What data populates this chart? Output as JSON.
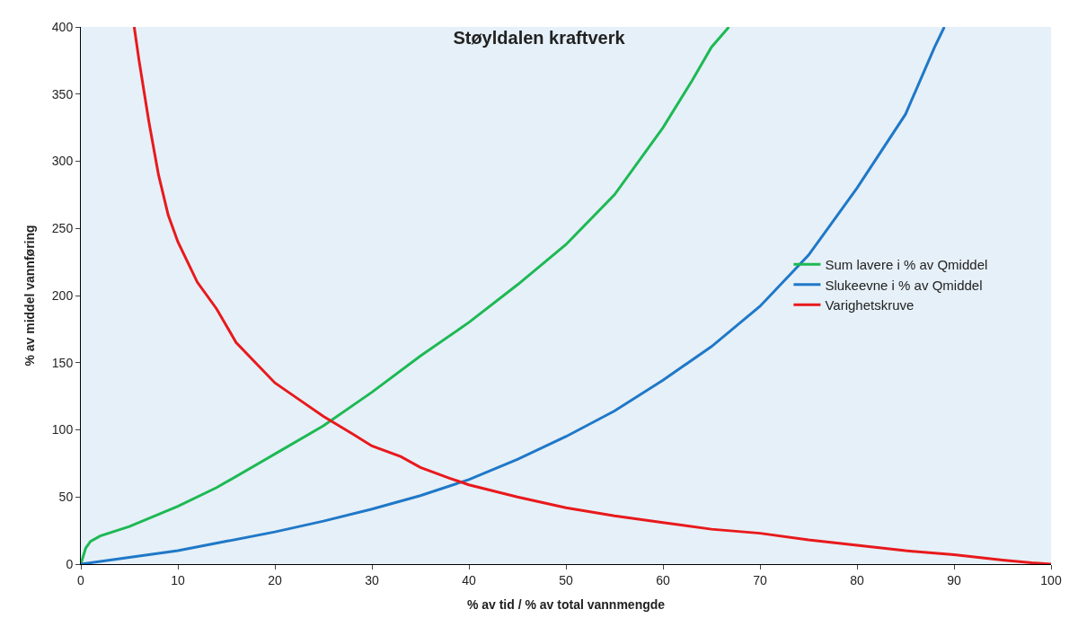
{
  "chart_data": {
    "type": "line",
    "title": "Støyldalen kraftverk",
    "xlabel": "% av tid / % av total vannmengde",
    "ylabel": "% av middel vannføring",
    "xlim": [
      0,
      100
    ],
    "xticks": [
      0,
      10,
      20,
      30,
      40,
      50,
      60,
      70,
      80,
      90,
      100
    ],
    "ylim": [
      0,
      400
    ],
    "yticks": [
      0,
      50,
      100,
      150,
      200,
      250,
      300,
      350,
      400
    ],
    "grid": false,
    "legend": "right",
    "marker": "none",
    "line_style": "solid",
    "series": [
      {
        "name": "Sum lavere i % av Qmiddel",
        "color": "#1db954",
        "x": [
          0,
          0.5,
          1,
          2,
          5,
          10,
          14,
          20,
          25,
          30,
          35,
          40,
          45,
          50,
          55,
          60,
          63,
          65,
          66.8
        ],
        "values": [
          0,
          12,
          17,
          21,
          28,
          43,
          57,
          82,
          103,
          128,
          155,
          180,
          208,
          238,
          275,
          325,
          360,
          385,
          400
        ]
      },
      {
        "name": "Slukeevne i % av Qmiddel",
        "color": "#1f78c8",
        "x": [
          0,
          5,
          10,
          15,
          20,
          25,
          30,
          35,
          40,
          45,
          50,
          55,
          60,
          65,
          70,
          75,
          80,
          85,
          88,
          89
        ],
        "values": [
          0,
          5,
          10,
          17,
          24,
          32,
          41,
          51,
          63,
          78,
          95,
          114,
          137,
          162,
          192,
          230,
          280,
          335,
          385,
          400
        ]
      },
      {
        "name": "Varighetskruve",
        "color": "#e8191c",
        "x": [
          5.5,
          6,
          7,
          8,
          9,
          10,
          12,
          14,
          16,
          18,
          20,
          22,
          25,
          28,
          30,
          33,
          35,
          38,
          40,
          45,
          50,
          55,
          60,
          65,
          70,
          75,
          80,
          85,
          90,
          95,
          98,
          100
        ],
        "values": [
          400,
          375,
          330,
          290,
          260,
          240,
          210,
          190,
          165,
          150,
          135,
          125,
          110,
          97,
          88,
          80,
          72,
          64,
          59,
          50,
          42,
          36,
          31,
          26,
          23,
          18,
          14,
          10,
          7,
          3,
          1,
          0
        ]
      }
    ]
  }
}
